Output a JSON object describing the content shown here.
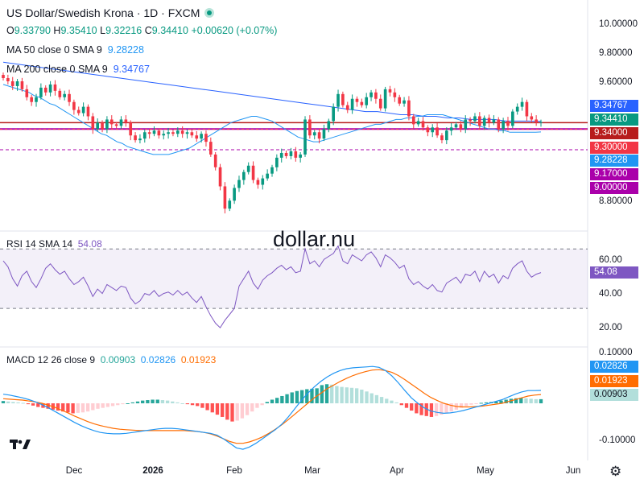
{
  "header": {
    "symbol": "US Dollar/Swedish Krona · 1D · FXCM",
    "ohlc": {
      "o_label": "O",
      "o": "9.33790",
      "h_label": "H",
      "h": "9.35410",
      "l_label": "L",
      "l": "9.32216",
      "c_label": "C",
      "c": "9.34410",
      "change": "+0.00620 (+0.07%)"
    },
    "ma50": {
      "label": "MA 50 close 0 SMA 9",
      "value": "9.28228"
    },
    "ma200": {
      "label": "MA 200 close 0 SMA 9",
      "value": "9.34767"
    }
  },
  "watermark": "dollar.nu",
  "colors": {
    "up": "#089981",
    "down": "#f23645",
    "ma50": "#2196f3",
    "ma200": "#2962ff",
    "rsi": "#7e57c2",
    "macd": "#2196f3",
    "signal": "#ff6d00",
    "support": "#aa00aa",
    "resistance": "#b71c1c"
  },
  "chart_data": [
    {
      "type": "line",
      "name": "price",
      "x_axis_labels": [
        "Dec",
        "2026",
        "Feb",
        "Mar",
        "Apr",
        "May",
        "Jun"
      ],
      "y_axis_labels": [
        "10.00000",
        "9.80000",
        "9.60000",
        "8.80000"
      ],
      "ylim": [
        8.72,
        10.05
      ],
      "close": [
        9.62,
        9.6,
        9.57,
        9.6,
        9.55,
        9.5,
        9.47,
        9.5,
        9.56,
        9.53,
        9.58,
        9.54,
        9.5,
        9.52,
        9.47,
        9.42,
        9.4,
        9.44,
        9.38,
        9.3,
        9.34,
        9.3,
        9.36,
        9.33,
        9.32,
        9.36,
        9.34,
        9.26,
        9.23,
        9.24,
        9.28,
        9.27,
        9.29,
        9.26,
        9.27,
        9.28,
        9.27,
        9.29,
        9.27,
        9.28,
        9.26,
        9.24,
        9.27,
        9.22,
        9.14,
        9.06,
        8.94,
        8.8,
        8.85,
        8.93,
        8.98,
        9.03,
        9.07,
        8.98,
        8.95,
        8.99,
        9.02,
        9.06,
        9.12,
        9.15,
        9.13,
        9.16,
        9.12,
        9.14,
        9.36,
        9.26,
        9.28,
        9.24,
        9.3,
        9.35,
        9.44,
        9.52,
        9.45,
        9.42,
        9.49,
        9.47,
        9.45,
        9.5,
        9.53,
        9.49,
        9.43,
        9.55,
        9.53,
        9.5,
        9.46,
        9.48,
        9.38,
        9.33,
        9.35,
        9.31,
        9.28,
        9.31,
        9.26,
        9.23,
        9.29,
        9.31,
        9.33,
        9.3,
        9.36,
        9.35,
        9.38,
        9.32,
        9.37,
        9.34,
        9.36,
        9.3,
        9.35,
        9.32,
        9.41,
        9.44,
        9.47,
        9.38,
        9.36,
        9.34,
        9.344
      ],
      "ma50": [
        9.58,
        9.57,
        9.56,
        9.55,
        9.54,
        9.53,
        9.51,
        9.5,
        9.48,
        9.46,
        9.45,
        9.43,
        9.41,
        9.39,
        9.37,
        9.35,
        9.33,
        9.31,
        9.29,
        9.27,
        9.26,
        9.24,
        9.22,
        9.21,
        9.19,
        9.18,
        9.17,
        9.16,
        9.15,
        9.14,
        9.14,
        9.14,
        9.14,
        9.15,
        9.16,
        9.17,
        9.18,
        9.2,
        9.22,
        9.24,
        9.26,
        9.28,
        9.3,
        9.32,
        9.34,
        9.35,
        9.36,
        9.37,
        9.38,
        9.38,
        9.37,
        9.36,
        9.35,
        9.33,
        9.31,
        9.29,
        9.27,
        9.25,
        9.24,
        9.23,
        9.22,
        9.22,
        9.23,
        9.24,
        9.25,
        9.26,
        9.27,
        9.28,
        9.29,
        9.3,
        9.31,
        9.32,
        9.33,
        9.33,
        9.34,
        9.35,
        9.36,
        9.36,
        9.37,
        9.37,
        9.38,
        9.38,
        9.39,
        9.39,
        9.39,
        9.39,
        9.38,
        9.37,
        9.36,
        9.35,
        9.34,
        9.33,
        9.32,
        9.31,
        9.3,
        9.3,
        9.29,
        9.29,
        9.28,
        9.28,
        9.28,
        9.28,
        9.28,
        9.28,
        9.282
      ],
      "ma200": [
        9.72,
        9.71,
        9.7,
        9.69,
        9.68,
        9.67,
        9.66,
        9.65,
        9.64,
        9.63,
        9.62,
        9.61,
        9.6,
        9.59,
        9.58,
        9.57,
        9.56,
        9.55,
        9.54,
        9.53,
        9.52,
        9.51,
        9.5,
        9.49,
        9.48,
        9.47,
        9.46,
        9.45,
        9.44,
        9.43,
        9.42,
        9.41,
        9.41,
        9.4,
        9.39,
        9.39,
        9.38,
        9.38,
        9.37,
        9.37,
        9.36,
        9.36,
        9.36,
        9.35,
        9.35,
        9.35,
        9.348
      ],
      "levels": [
        {
          "value": "9.34000",
          "kind": "resistance"
        },
        {
          "value": "9.30000",
          "kind": "support"
        },
        {
          "value": "9.17000",
          "kind": "dashed"
        }
      ],
      "price_badges": [
        {
          "text": "9.34767",
          "color": "#2962ff"
        },
        {
          "text": "9.34410",
          "color": "#089981"
        },
        {
          "text": "9.34000",
          "color": "#b71c1c"
        },
        {
          "text": "9.30000",
          "color": "#f23645"
        },
        {
          "text": "9.28228",
          "color": "#2196f3"
        },
        {
          "text": "9.17000",
          "color": "#aa00aa"
        },
        {
          "text": "9.00000",
          "color": "#aa00aa"
        }
      ]
    },
    {
      "type": "line",
      "name": "RSI",
      "label": "RSI 14 SMA 14",
      "value_text": "54.08",
      "y_axis_labels": [
        "60.00",
        "40.00",
        "20.00"
      ],
      "ylim": [
        10,
        75
      ],
      "band": [
        30,
        70
      ],
      "values": [
        62,
        58,
        50,
        45,
        52,
        55,
        48,
        44,
        50,
        57,
        60,
        56,
        53,
        55,
        50,
        46,
        48,
        51,
        45,
        38,
        43,
        40,
        46,
        44,
        42,
        45,
        44,
        37,
        33,
        35,
        40,
        39,
        42,
        38,
        40,
        41,
        39,
        42,
        39,
        41,
        37,
        34,
        38,
        31,
        25,
        20,
        17,
        22,
        26,
        30,
        45,
        50,
        55,
        47,
        43,
        49,
        52,
        54,
        57,
        59,
        56,
        58,
        54,
        55,
        70,
        60,
        62,
        58,
        63,
        65,
        67,
        72,
        62,
        60,
        66,
        64,
        62,
        66,
        68,
        64,
        58,
        66,
        64,
        61,
        57,
        59,
        50,
        46,
        48,
        45,
        43,
        46,
        42,
        41,
        47,
        49,
        51,
        47,
        53,
        52,
        55,
        48,
        55,
        51,
        53,
        47,
        52,
        50,
        57,
        60,
        62,
        55,
        51,
        53,
        54.08
      ]
    },
    {
      "type": "bar",
      "name": "MACD",
      "label": "MACD 12 26 close 9",
      "values_text": [
        "0.00903",
        "0.02826",
        "0.01923"
      ],
      "y_axis_labels": [
        "0.10000",
        "-0.10000"
      ],
      "ylim": [
        -0.115,
        0.115
      ],
      "histogram": [
        0.005,
        0.004,
        0.003,
        0.002,
        0.001,
        -0.002,
        -0.005,
        -0.008,
        -0.01,
        -0.012,
        -0.014,
        -0.016,
        -0.018,
        -0.02,
        -0.022,
        -0.021,
        -0.02,
        -0.018,
        -0.015,
        -0.012,
        -0.01,
        -0.008,
        -0.006,
        -0.004,
        -0.002,
        0.0,
        0.002,
        0.004,
        0.006,
        0.007,
        0.008,
        0.008,
        0.007,
        0.006,
        0.004,
        0.002,
        0.0,
        -0.002,
        -0.004,
        -0.006,
        -0.01,
        -0.015,
        -0.02,
        -0.025,
        -0.03,
        -0.036,
        -0.04,
        -0.038,
        -0.033,
        -0.026,
        -0.018,
        -0.01,
        -0.004,
        0.003,
        0.008,
        0.012,
        0.016,
        0.02,
        0.024,
        0.027,
        0.029,
        0.031,
        0.032,
        0.033,
        0.04,
        0.042,
        0.041,
        0.038,
        0.036,
        0.035,
        0.034,
        0.033,
        0.03,
        0.026,
        0.022,
        0.018,
        0.014,
        0.01,
        0.006,
        0.002,
        -0.004,
        -0.01,
        -0.016,
        -0.022,
        -0.026,
        -0.028,
        -0.03,
        -0.028,
        -0.025,
        -0.022,
        -0.018,
        -0.014,
        -0.01,
        -0.006,
        -0.003,
        -0.001,
        0.001,
        0.002,
        0.003,
        0.004,
        0.006,
        0.008,
        0.01,
        0.011,
        0.012,
        0.011,
        0.01,
        0.009,
        0.00903
      ],
      "macd_line": [
        0.02,
        0.018,
        0.015,
        0.012,
        0.008,
        0.003,
        -0.003,
        -0.01,
        -0.018,
        -0.026,
        -0.034,
        -0.042,
        -0.049,
        -0.055,
        -0.06,
        -0.064,
        -0.066,
        -0.067,
        -0.067,
        -0.066,
        -0.064,
        -0.062,
        -0.06,
        -0.058,
        -0.056,
        -0.055,
        -0.055,
        -0.056,
        -0.058,
        -0.06,
        -0.062,
        -0.064,
        -0.066,
        -0.07,
        -0.078,
        -0.088,
        -0.098,
        -0.101,
        -0.096,
        -0.088,
        -0.078,
        -0.068,
        -0.058,
        -0.046,
        -0.03,
        -0.012,
        0.006,
        0.022,
        0.036,
        0.048,
        0.058,
        0.066,
        0.072,
        0.076,
        0.078,
        0.079,
        0.08,
        0.081,
        0.079,
        0.072,
        0.06,
        0.045,
        0.028,
        0.012,
        0.0,
        -0.01,
        -0.017,
        -0.02,
        -0.022,
        -0.021,
        -0.019,
        -0.016,
        -0.012,
        -0.008,
        -0.004,
        0.0,
        0.004,
        0.008,
        0.014,
        0.02,
        0.025,
        0.028,
        0.028,
        0.02826
      ],
      "signal_line": [
        0.01,
        0.009,
        0.008,
        0.007,
        0.005,
        0.003,
        0.0,
        -0.004,
        -0.009,
        -0.015,
        -0.021,
        -0.028,
        -0.034,
        -0.04,
        -0.045,
        -0.049,
        -0.052,
        -0.055,
        -0.057,
        -0.058,
        -0.059,
        -0.06,
        -0.06,
        -0.06,
        -0.06,
        -0.06,
        -0.06,
        -0.06,
        -0.06,
        -0.061,
        -0.062,
        -0.064,
        -0.067,
        -0.072,
        -0.078,
        -0.084,
        -0.088,
        -0.088,
        -0.085,
        -0.08,
        -0.074,
        -0.066,
        -0.057,
        -0.047,
        -0.036,
        -0.024,
        -0.012,
        0.0,
        0.012,
        0.022,
        0.032,
        0.04,
        0.048,
        0.055,
        0.061,
        0.066,
        0.07,
        0.073,
        0.074,
        0.072,
        0.068,
        0.061,
        0.052,
        0.042,
        0.032,
        0.022,
        0.013,
        0.006,
        0.0,
        -0.004,
        -0.007,
        -0.008,
        -0.008,
        -0.007,
        -0.006,
        -0.004,
        -0.002,
        0.0,
        0.004,
        0.008,
        0.012,
        0.016,
        0.018,
        0.01923
      ]
    }
  ],
  "x_axis_positions": {
    "Dec": 92,
    "2026": 190,
    "Feb": 291,
    "Mar": 388,
    "Apr": 493,
    "May": 603,
    "Jun": 712
  }
}
